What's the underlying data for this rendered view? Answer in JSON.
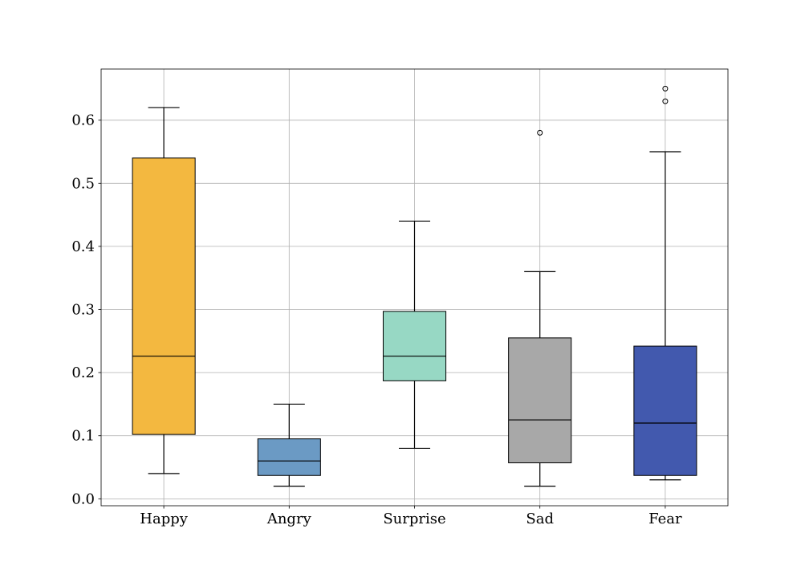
{
  "chart_data": {
    "type": "box",
    "categories": [
      "Happy",
      "Angry",
      "Surprise",
      "Sad",
      "Fear"
    ],
    "colors": [
      "#f3b840",
      "#6b9ac4",
      "#97d8c4",
      "#a8a8a8",
      "#4259ae"
    ],
    "boxes": [
      {
        "whislo": 0.04,
        "q1": 0.102,
        "med": 0.226,
        "q3": 0.54,
        "whishi": 0.62,
        "fliers": []
      },
      {
        "whislo": 0.02,
        "q1": 0.037,
        "med": 0.06,
        "q3": 0.095,
        "whishi": 0.15,
        "fliers": []
      },
      {
        "whislo": 0.08,
        "q1": 0.187,
        "med": 0.226,
        "q3": 0.297,
        "whishi": 0.44,
        "fliers": []
      },
      {
        "whislo": 0.02,
        "q1": 0.057,
        "med": 0.125,
        "q3": 0.255,
        "whishi": 0.36,
        "fliers": [
          0.58
        ]
      },
      {
        "whislo": 0.03,
        "q1": 0.037,
        "med": 0.12,
        "q3": 0.242,
        "whishi": 0.55,
        "fliers": [
          0.63,
          0.65
        ]
      }
    ],
    "ylim": [
      -0.011,
      0.681
    ],
    "yticks": [
      {
        "value": 0,
        "label": "0.0"
      },
      0.1,
      0.2,
      0.3,
      0.4,
      0.5,
      0.6
    ],
    "grid": true
  }
}
